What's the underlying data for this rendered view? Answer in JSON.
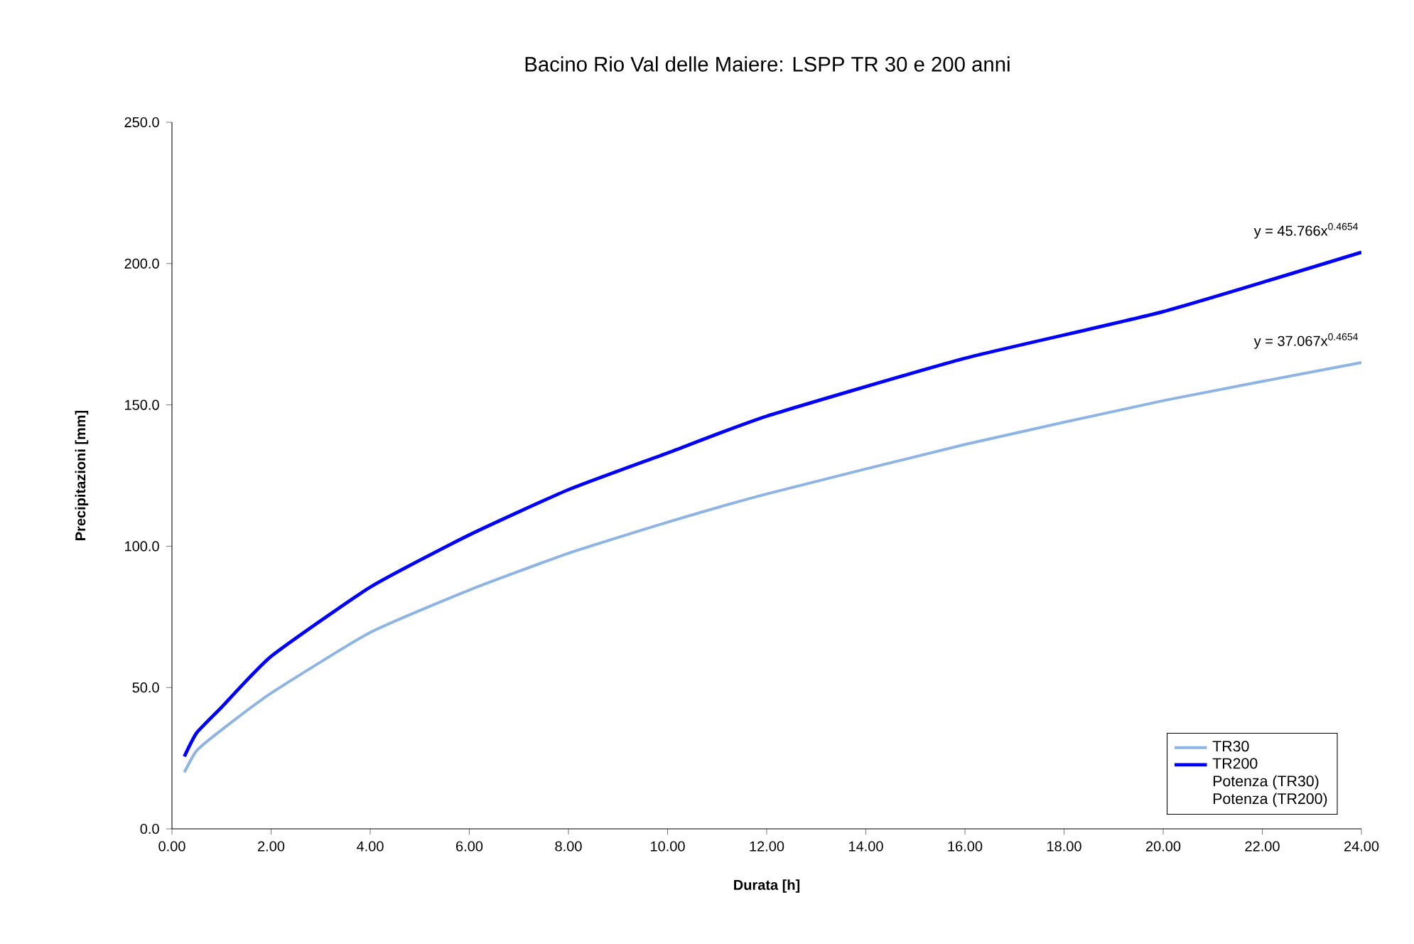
{
  "chart_data": {
    "type": "line",
    "title": "Bacino Rio Val delle Maiere: LSPP TR 30 e 200 anni",
    "xlabel": "Durata [h]",
    "ylabel": "Precipitazioni [mm]",
    "x": [
      0.25,
      0.5,
      1,
      2,
      4,
      6,
      8,
      10,
      12,
      16,
      20,
      24
    ],
    "series": [
      {
        "name": "TR30",
        "color": "#8db4e2",
        "values": [
          20,
          27.7,
          35,
          48,
          69.5,
          84.5,
          97.5,
          108.5,
          118.5,
          136,
          151.5,
          165
        ]
      },
      {
        "name": "TR200",
        "color": "#0000ff",
        "values": [
          25.6,
          34,
          43,
          61,
          85.5,
          104,
          120,
          133,
          146,
          166.5,
          183,
          204
        ]
      }
    ],
    "xlim": [
      0,
      24
    ],
    "ylim": [
      0,
      250
    ],
    "xticks": [
      {
        "value": 0,
        "label": "0.00"
      },
      {
        "value": 2,
        "label": "2.00"
      },
      {
        "value": 4,
        "label": "4.00"
      },
      {
        "value": 6,
        "label": "6.00"
      },
      {
        "value": 8,
        "label": "8.00"
      },
      {
        "value": 10,
        "label": "10.00"
      },
      {
        "value": 12,
        "label": "12.00"
      },
      {
        "value": 14,
        "label": "14.00"
      },
      {
        "value": 16,
        "label": "16.00"
      },
      {
        "value": 18,
        "label": "18.00"
      },
      {
        "value": 20,
        "label": "20.00"
      },
      {
        "value": 22,
        "label": "22.00"
      },
      {
        "value": 24,
        "label": "24.00"
      }
    ],
    "yticks": [
      {
        "value": 0,
        "label": "0.0"
      },
      {
        "value": 50,
        "label": "50.0"
      },
      {
        "value": 100,
        "label": "100.0"
      },
      {
        "value": 150,
        "label": "150.0"
      },
      {
        "value": 200,
        "label": "200.0"
      },
      {
        "value": 250,
        "label": "250.0"
      }
    ],
    "annotations": [
      {
        "text": "y = 45.766x$^{0.4654}$",
        "x": 24,
        "y": 204
      },
      {
        "text": "y = 37.067x$^{0.4654}$",
        "x": 24,
        "y": 165
      },
      "Potenza (TR30)",
      "Potenza (TR200)"
    ],
    "legend": "bottom right",
    "grid": false,
    "marker": "none",
    "line_style": "solid"
  }
}
